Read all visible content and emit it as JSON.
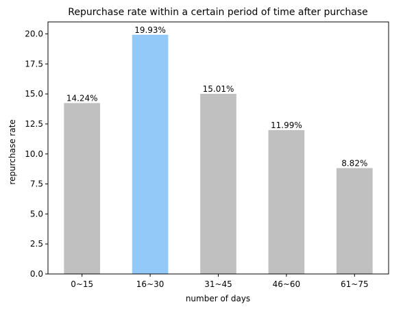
{
  "chart_data": {
    "type": "bar",
    "title": "Repurchase rate within a certain period of time after purchase",
    "xlabel": "number of days",
    "ylabel": "repurchase rate",
    "categories": [
      "0~15",
      "16~30",
      "31~45",
      "46~60",
      "61~75"
    ],
    "values": [
      14.24,
      19.93,
      15.01,
      11.99,
      8.82
    ],
    "data_labels": [
      "14.24%",
      "19.93%",
      "15.01%",
      "11.99%",
      "8.82%"
    ],
    "ylim": [
      0,
      21
    ],
    "yticks": [
      0.0,
      2.5,
      5.0,
      7.5,
      10.0,
      12.5,
      15.0,
      17.5,
      20.0
    ],
    "ytick_labels": [
      "0.0",
      "2.5",
      "5.0",
      "7.5",
      "10.0",
      "12.5",
      "15.0",
      "17.5",
      "20.0"
    ],
    "grid": false,
    "legend": "none",
    "colors": {
      "default_bar": "#c0c0c0",
      "highlight_bar": "#92c9f8",
      "highlight_category": "16~30",
      "axis": "#000000"
    }
  }
}
